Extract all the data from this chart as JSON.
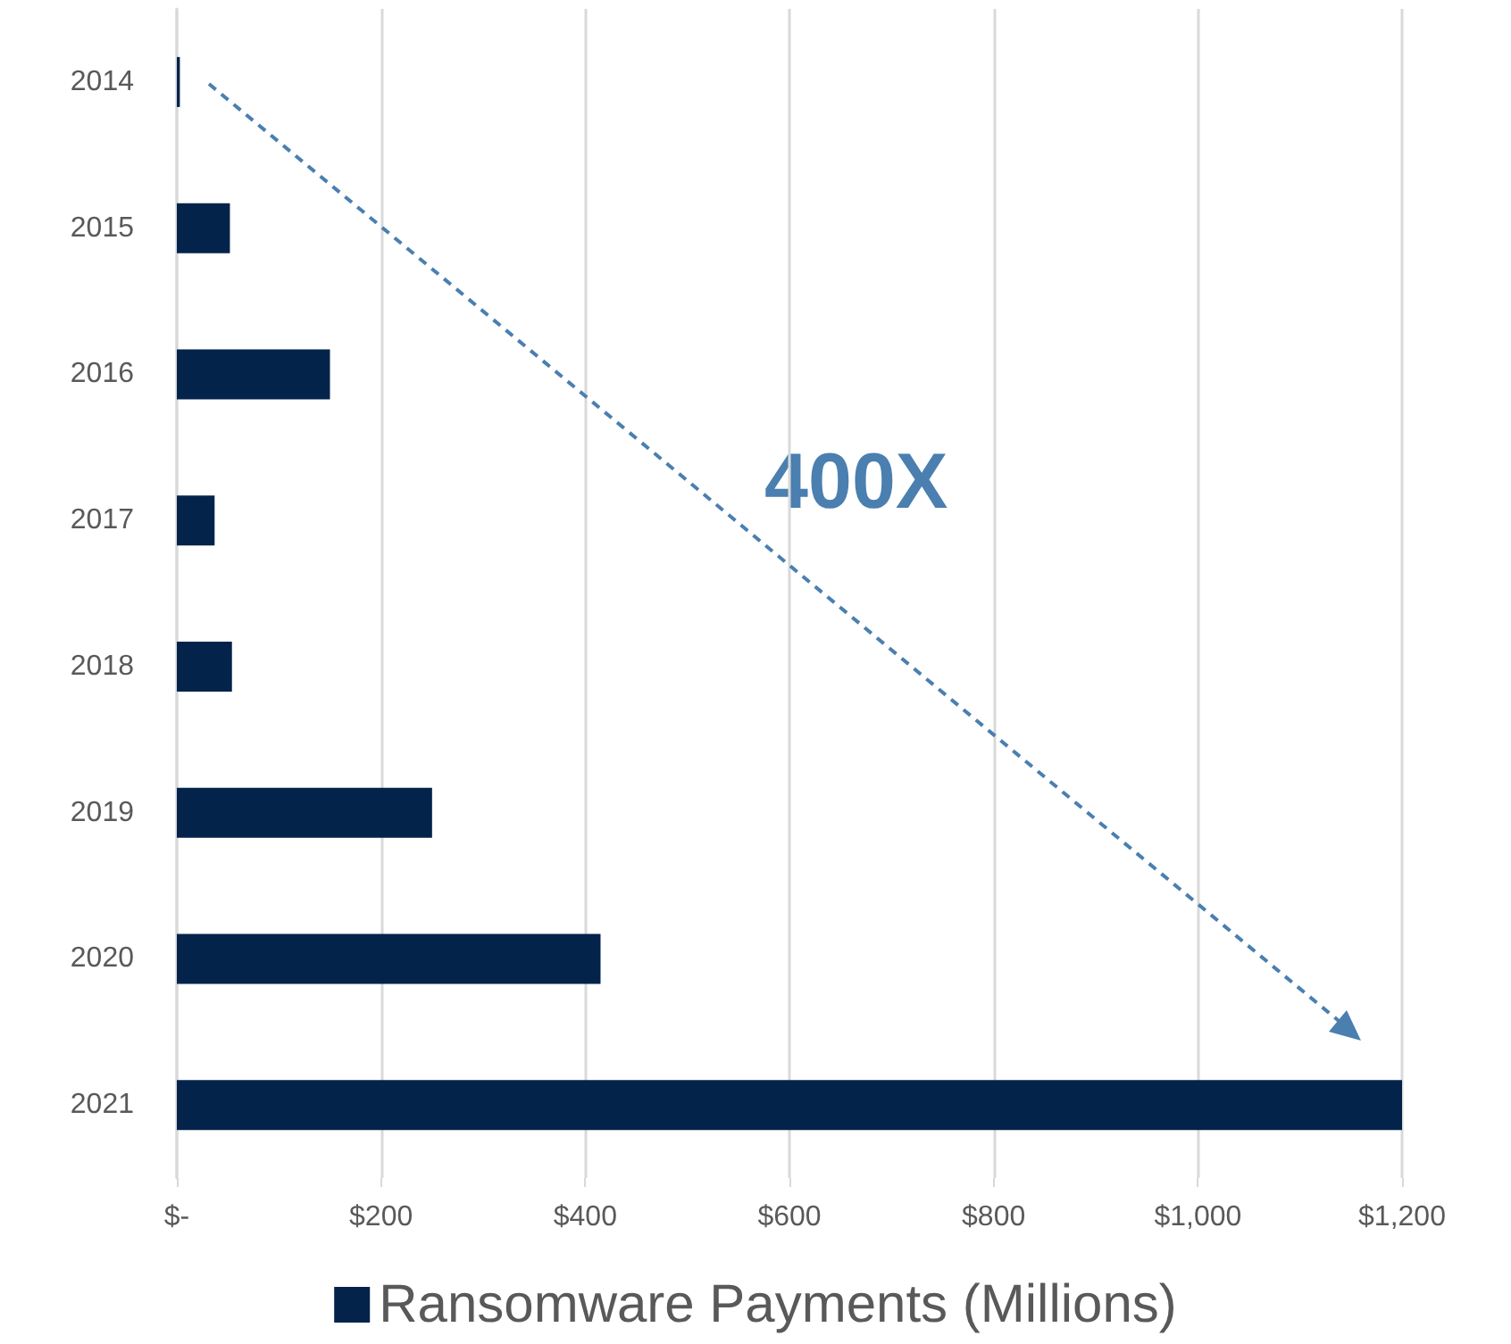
{
  "chart_data": {
    "type": "bar",
    "orientation": "horizontal",
    "categories": [
      "2014",
      "2015",
      "2016",
      "2017",
      "2018",
      "2019",
      "2020",
      "2021"
    ],
    "series": [
      {
        "name": "Ransomware Payments (Millions)",
        "color": "#03234b",
        "values": [
          3,
          52,
          150,
          37,
          54,
          250,
          415,
          1200
        ]
      }
    ],
    "xlim": [
      0,
      1200
    ],
    "xticks": [
      {
        "value": 0,
        "label": "$-"
      },
      {
        "value": 200,
        "label": "$200"
      },
      {
        "value": 400,
        "label": "$400"
      },
      {
        "value": 600,
        "label": "$600"
      },
      {
        "value": 800,
        "label": "$800"
      },
      {
        "value": 1000,
        "label": "$1,000"
      },
      {
        "value": 1200,
        "label": "$1,200"
      }
    ],
    "grid": "x",
    "legend": "bottom",
    "annotations": [
      "400X"
    ]
  }
}
